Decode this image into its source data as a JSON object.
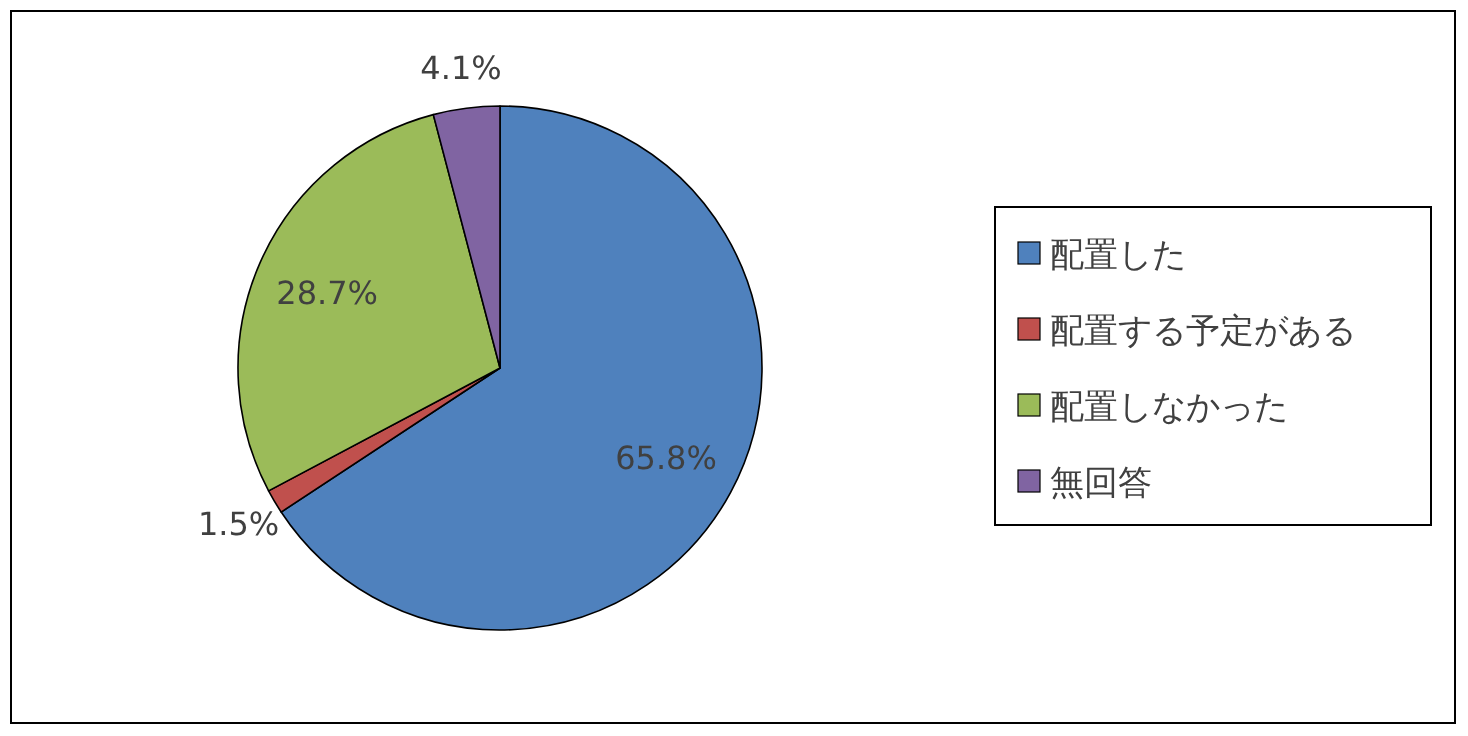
{
  "chart_data": {
    "type": "pie",
    "categories": [
      "配置した",
      "配置する予定がある",
      "配置しなかった",
      "無回答"
    ],
    "values": [
      65.8,
      1.5,
      28.7,
      4.1
    ],
    "colors": [
      "#4f81bd",
      "#c0504d",
      "#9bbb59",
      "#8064a2"
    ],
    "value_labels": [
      "65.8%",
      "1.5%",
      "28.7%",
      "4.1%"
    ],
    "legend": "right"
  }
}
